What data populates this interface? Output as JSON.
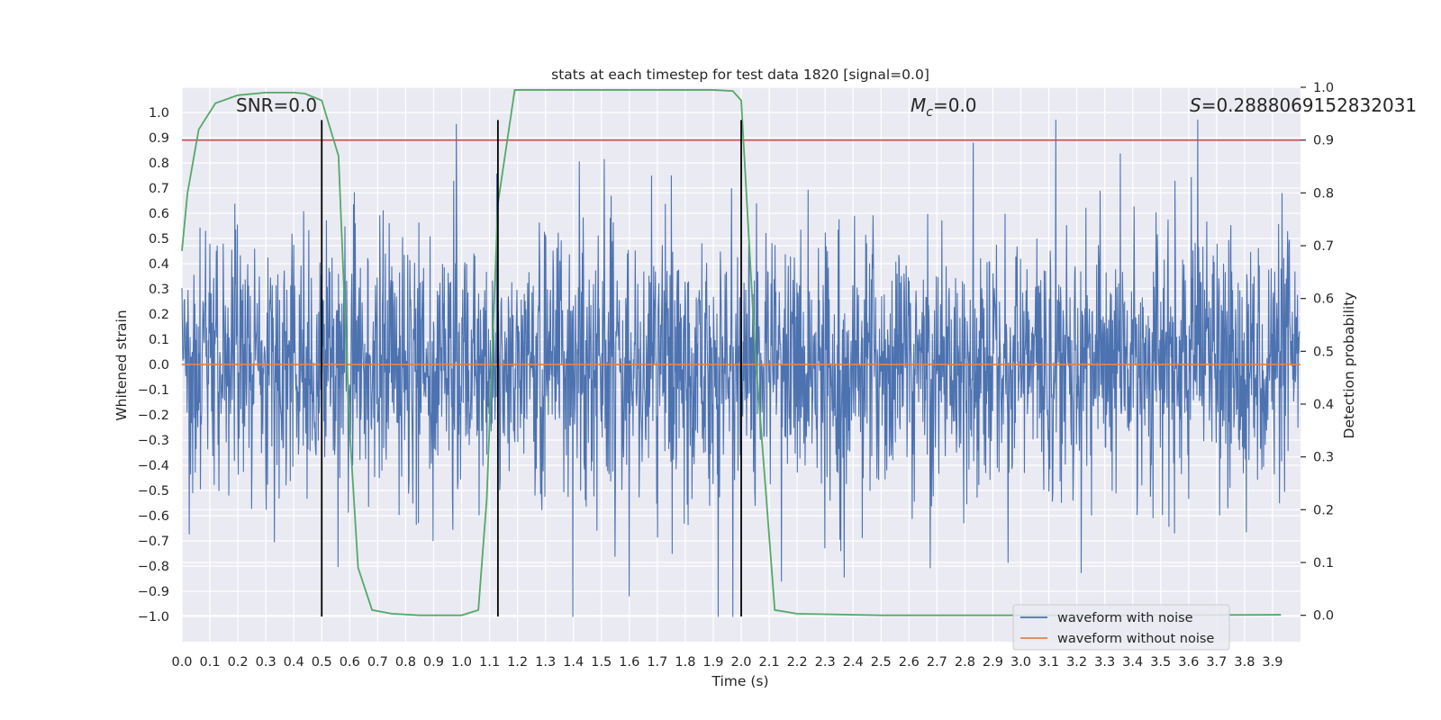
{
  "chart_data": {
    "type": "line",
    "title": "stats at each timestep for test data 1820 [signal=0.0]",
    "xlabel": "Time (s)",
    "ylabel": "Whitened strain",
    "y2label": "Detection probability",
    "xlim": [
      0.0,
      4.0
    ],
    "ylim": [
      -1.1,
      1.1
    ],
    "y2lim": [
      -0.05,
      1.0
    ],
    "x_ticks": [
      "0.0",
      "0.1",
      "0.2",
      "0.3",
      "0.4",
      "0.5",
      "0.6",
      "0.7",
      "0.8",
      "0.9",
      "1.0",
      "1.1",
      "1.2",
      "1.3",
      "1.4",
      "1.5",
      "1.6",
      "1.7",
      "1.8",
      "1.9",
      "2.0",
      "2.1",
      "2.2",
      "2.3",
      "2.4",
      "2.5",
      "2.6",
      "2.7",
      "2.8",
      "2.9",
      "3.0",
      "3.1",
      "3.2",
      "3.3",
      "3.4",
      "3.5",
      "3.6",
      "3.7",
      "3.8",
      "3.9"
    ],
    "y_ticks": [
      "1.0",
      "0.9",
      "0.8",
      "0.7",
      "0.6",
      "0.5",
      "0.4",
      "0.3",
      "0.2",
      "0.1",
      "0.0",
      "-0.1",
      "-0.2",
      "-0.3",
      "-0.4",
      "-0.5",
      "-0.6",
      "-0.7",
      "-0.8",
      "-0.9",
      "-1.0"
    ],
    "y2_ticks": [
      "1.0",
      "0.9",
      "0.8",
      "0.7",
      "0.6",
      "0.5",
      "0.4",
      "0.3",
      "0.2",
      "0.1",
      "0.0"
    ],
    "annotations": {
      "snr": "SNR=0.0",
      "mc_symbol": "M",
      "mc_sub": "c",
      "mc_value": "=0.0",
      "s_symbol": "S",
      "s_value": "=0.2888069152832031"
    },
    "series": [
      {
        "name": "waveform with noise",
        "color": "#4c72b0",
        "style": "dense noise trace, amplitude roughly ±1.0"
      },
      {
        "name": "waveform without noise",
        "color": "#dd8452",
        "y_constant": 0.0
      },
      {
        "name": "detection probability",
        "color": "#55a868",
        "axis": "right",
        "x": [
          0.0,
          0.02,
          0.06,
          0.12,
          0.2,
          0.3,
          0.4,
          0.44,
          0.5,
          0.56,
          0.6,
          0.63,
          0.68,
          0.75,
          0.85,
          1.0,
          1.06,
          1.09,
          1.13,
          1.19,
          1.3,
          1.5,
          1.7,
          1.9,
          1.97,
          2.0,
          2.05,
          2.12,
          2.2,
          2.5,
          3.0,
          3.5,
          3.93
        ],
        "y": [
          0.69,
          0.8,
          0.92,
          0.97,
          0.985,
          0.99,
          0.99,
          0.988,
          0.975,
          0.87,
          0.35,
          0.09,
          0.01,
          0.003,
          0.0,
          0.0,
          0.01,
          0.22,
          0.78,
          0.995,
          0.995,
          0.995,
          0.995,
          0.995,
          0.993,
          0.975,
          0.5,
          0.01,
          0.003,
          0.0,
          0.0,
          0.0,
          0.001
        ]
      }
    ],
    "hlines": [
      {
        "axis": "right",
        "y": 0.9,
        "color": "#c44e52"
      }
    ],
    "vlines": [
      {
        "x": 0.5,
        "color": "#000000"
      },
      {
        "x": 1.13,
        "color": "#000000"
      },
      {
        "x": 2.0,
        "color": "#000000"
      }
    ],
    "legend": {
      "position": "bottom-right",
      "entries": [
        {
          "label": "waveform with noise",
          "color": "#4c72b0"
        },
        {
          "label": "waveform without noise",
          "color": "#dd8452"
        }
      ]
    },
    "colors": {
      "background": "#eaeaf2",
      "grid": "#ffffff",
      "noise": "#4c72b0",
      "clean": "#dd8452",
      "prob": "#55a868",
      "threshold": "#c44e52",
      "marker": "#000000"
    }
  }
}
